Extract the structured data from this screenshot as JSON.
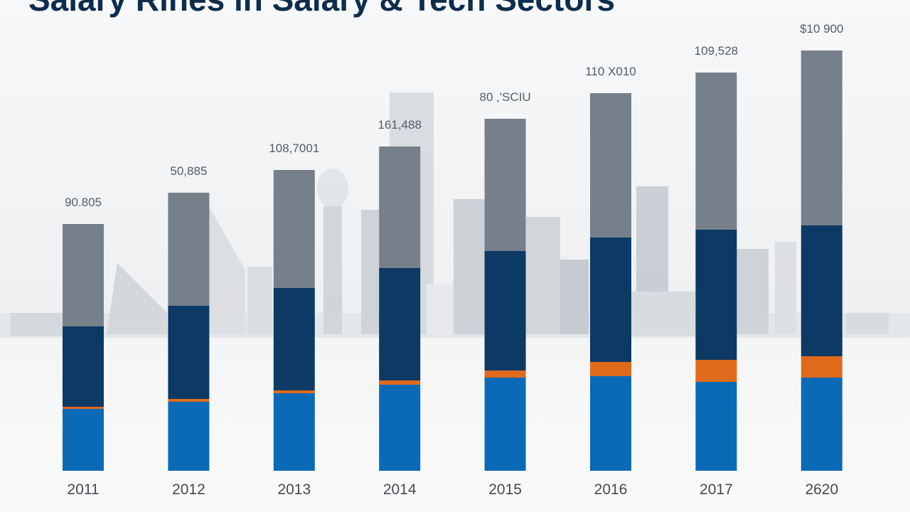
{
  "chart_data": {
    "type": "bar",
    "stacked": true,
    "title": "Salary Rines in Salary & Tech Sectors",
    "xlabel": "",
    "ylabel": "",
    "categories": [
      "2011",
      "2012",
      "2013",
      "2014",
      "2015",
      "2016",
      "2017",
      "2620"
    ],
    "data_labels": [
      "90.805",
      "50,885",
      "108,7001",
      "161,488",
      "80 ,'SCIU",
      "110 X010",
      "109,528",
      "$10 900"
    ],
    "series": [
      {
        "values": [
          87,
          97,
          109,
          121,
          131,
          133,
          125,
          131
        ],
        "color": "#0a6ab6"
      },
      {
        "values": [
          3,
          4,
          4,
          6,
          10,
          20,
          31,
          30
        ],
        "color": "#e06a1c"
      },
      {
        "values": [
          113,
          131,
          144,
          158,
          168,
          175,
          183,
          184
        ],
        "color": "#0c3a64"
      },
      {
        "values": [
          144,
          159,
          166,
          171,
          186,
          203,
          221,
          246
        ],
        "color": "#76808b"
      }
    ],
    "ylim": [
      0,
      600
    ],
    "grid": false,
    "legend": "none",
    "background": "city skyline"
  }
}
